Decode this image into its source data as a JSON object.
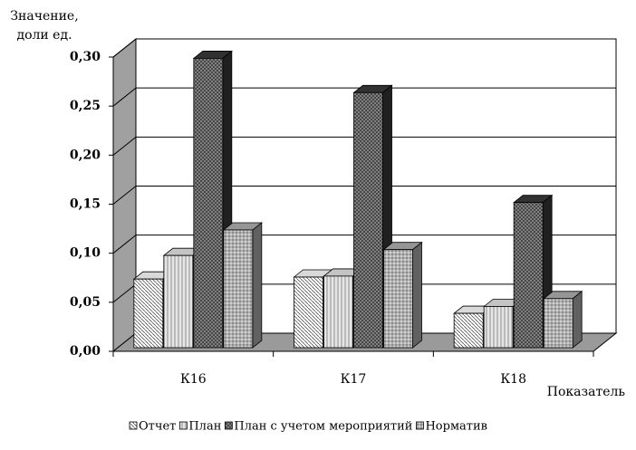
{
  "chart_data": {
    "type": "bar3d",
    "y_label": "Значение, доли ед.",
    "x_label": "Показатель",
    "categories": [
      "К16",
      "К17",
      "К18"
    ],
    "series": [
      {
        "name": "Отчет",
        "color": "#ffffff",
        "values": [
          0.07,
          0.072,
          0.035
        ]
      },
      {
        "name": "План",
        "color": "#e6e6e6",
        "values": [
          0.094,
          0.073,
          0.042
        ]
      },
      {
        "name": "План с учетом мероприятий",
        "color": "#3a3a3a",
        "values": [
          0.295,
          0.26,
          0.148
        ]
      },
      {
        "name": "Норматив",
        "color": "#b0b0b0",
        "values": [
          0.12,
          0.1,
          0.05
        ]
      }
    ],
    "ylim": [
      0,
      0.3
    ],
    "yticks": [
      {
        "value": 0,
        "label": "0,00"
      },
      {
        "value": 0.05,
        "label": "0,05"
      },
      {
        "value": 0.1,
        "label": "0,10"
      },
      {
        "value": 0.15,
        "label": "0,15"
      },
      {
        "value": 0.2,
        "label": "0,20"
      },
      {
        "value": 0.25,
        "label": "0,25"
      },
      {
        "value": 0.3,
        "label": "0,30"
      }
    ],
    "grid": true
  }
}
